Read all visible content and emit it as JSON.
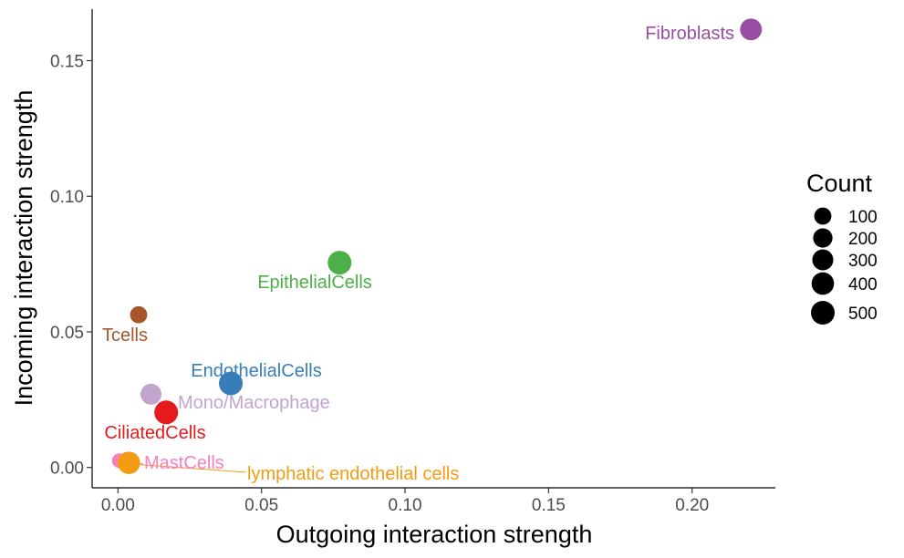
{
  "chart_data": {
    "type": "scatter",
    "xlabel": "Outgoing interaction strength",
    "ylabel": "Incoming interaction strength",
    "xlim": [
      -0.009,
      0.229
    ],
    "ylim": [
      -0.0075,
      0.169
    ],
    "x_ticks": [
      0.0,
      0.05,
      0.1,
      0.15,
      0.2
    ],
    "x_tick_labels": [
      "0.00",
      "0.05",
      "0.10",
      "0.15",
      "0.20"
    ],
    "y_ticks": [
      0.0,
      0.05,
      0.1,
      0.15
    ],
    "y_tick_labels": [
      "0.00",
      "0.05",
      "0.10",
      "0.15"
    ],
    "grid": false,
    "legend": {
      "title": "Count",
      "placement": "right",
      "items": [
        {
          "label": "100",
          "value": 100
        },
        {
          "label": "200",
          "value": 200
        },
        {
          "label": "300",
          "value": 300
        },
        {
          "label": "400",
          "value": 400
        },
        {
          "label": "500",
          "value": 500
        }
      ]
    },
    "points": [
      {
        "name": "Fibroblasts",
        "x": 0.2205,
        "y": 0.1615,
        "count": 350,
        "color": "#984EA3",
        "label_anchor": "end"
      },
      {
        "name": "EpithelialCells",
        "x": 0.0772,
        "y": 0.0755,
        "count": 500,
        "color": "#4DAF4A",
        "label_anchor": "middle"
      },
      {
        "name": "Tcells",
        "x": 0.0072,
        "y": 0.0563,
        "count": 100,
        "color": "#A65628",
        "label_anchor": "middle"
      },
      {
        "name": "EndothelialCells",
        "x": 0.0393,
        "y": 0.031,
        "count": 500,
        "color": "#377EB8",
        "label_anchor": "middle"
      },
      {
        "name": "Mono/Macrophage",
        "x": 0.0115,
        "y": 0.027,
        "count": 300,
        "color": "#C2A5CF",
        "label_anchor": "start"
      },
      {
        "name": "CiliatedCells",
        "x": 0.0168,
        "y": 0.0203,
        "count": 500,
        "color": "#E41A1C",
        "label_anchor": "middle"
      },
      {
        "name": "MastCells",
        "x": 0.0005,
        "y": 0.0025,
        "count": 30,
        "color": "#F781BF",
        "label_anchor": "start"
      },
      {
        "name": "lymphatic endothelial cells",
        "x": 0.0038,
        "y": 0.0017,
        "count": 400,
        "color": "#F39C12",
        "label_anchor": "start"
      }
    ]
  }
}
